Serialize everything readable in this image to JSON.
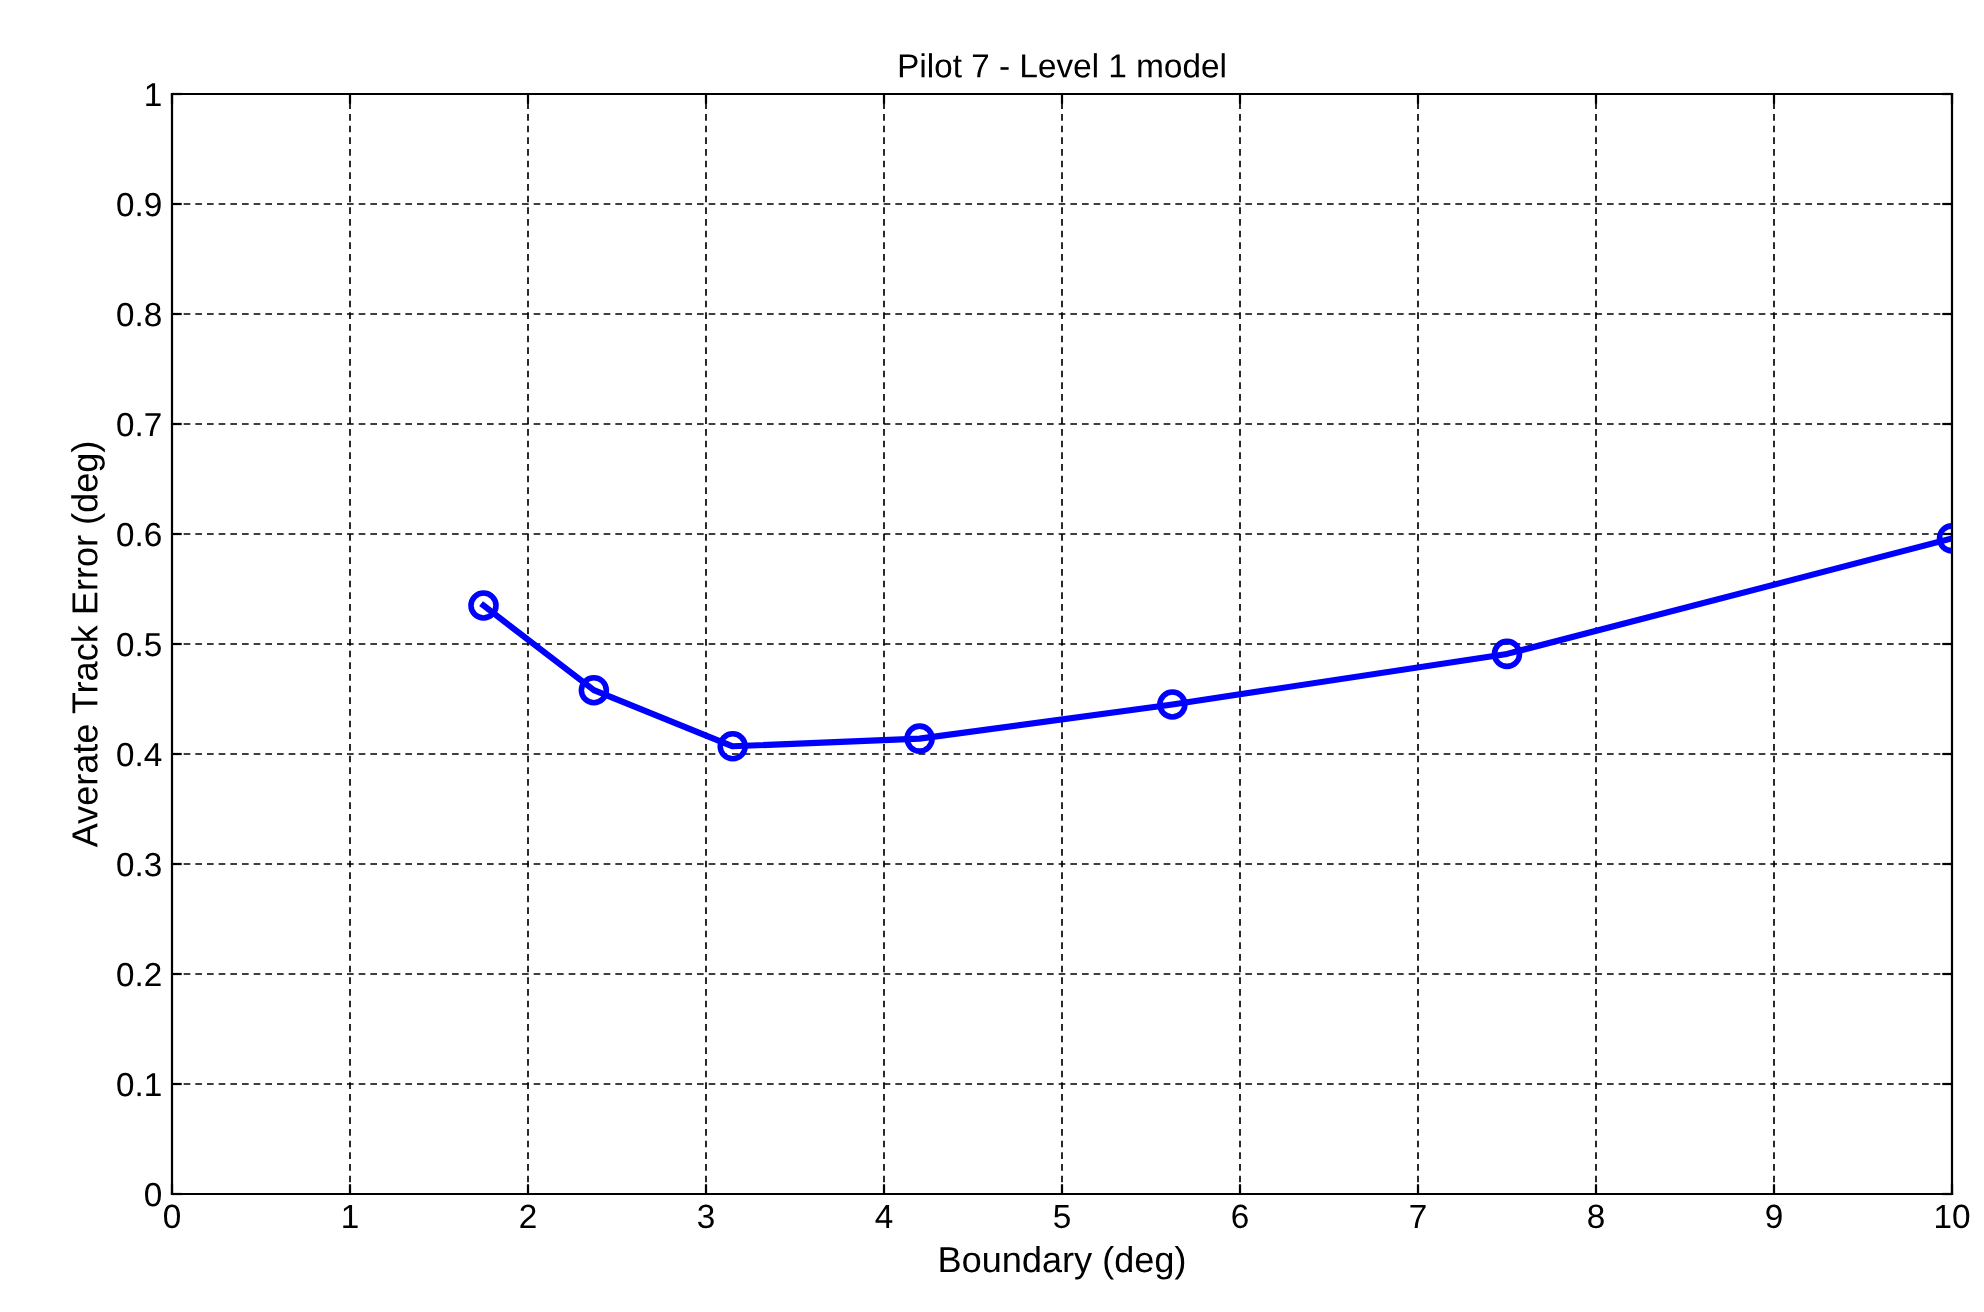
{
  "chart_data": {
    "type": "line",
    "title": "Pilot 7 - Level 1 model",
    "xlabel": "Boundary (deg)",
    "ylabel": "Averate Track Error (deg)",
    "x": [
      1.75,
      2.37,
      3.15,
      4.2,
      5.62,
      7.5,
      10
    ],
    "series": [
      {
        "color": "#0000ff",
        "values": [
          0.535,
          0.458,
          0.407,
          0.414,
          0.445,
          0.491,
          0.596
        ]
      }
    ],
    "xlim": [
      0,
      10
    ],
    "xticks": [
      0,
      1,
      2,
      3,
      4,
      5,
      6,
      7,
      8,
      9,
      10
    ],
    "ylim": [
      0,
      1
    ],
    "yticks": [
      0,
      0.1,
      0.2,
      0.3,
      0.4,
      0.5,
      0.6,
      0.7,
      0.8,
      0.9,
      1
    ],
    "grid": true,
    "marker": "circle",
    "line_style": "solid"
  }
}
